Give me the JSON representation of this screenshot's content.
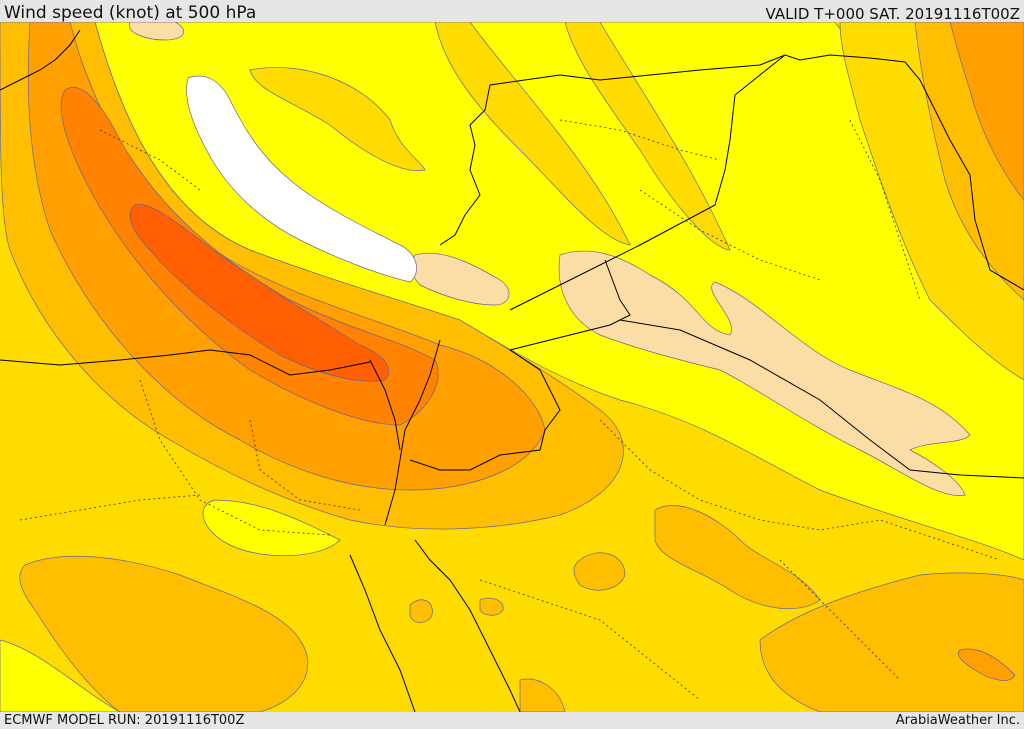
{
  "header": {
    "title": "Wind speed (knot) at 500 hPa",
    "valid": "VALID T+000 SAT. 20191116T00Z"
  },
  "footer": {
    "model_run": "ECMWF MODEL RUN: 20191116T00Z",
    "credit": "ArabiaWeather Inc."
  },
  "map": {
    "field": "wind speed",
    "level": "500 hPa",
    "colors": {
      "sea_white": "#ffffff",
      "tan": "#fddda6",
      "yellow": "#ffff00",
      "gold": "#ffdc00",
      "amber": "#ffbe00",
      "orange_light": "#ffa000",
      "orange": "#ff8200",
      "orange_dark": "#ff5f00",
      "contour": "#666699",
      "border": "#000000"
    }
  }
}
